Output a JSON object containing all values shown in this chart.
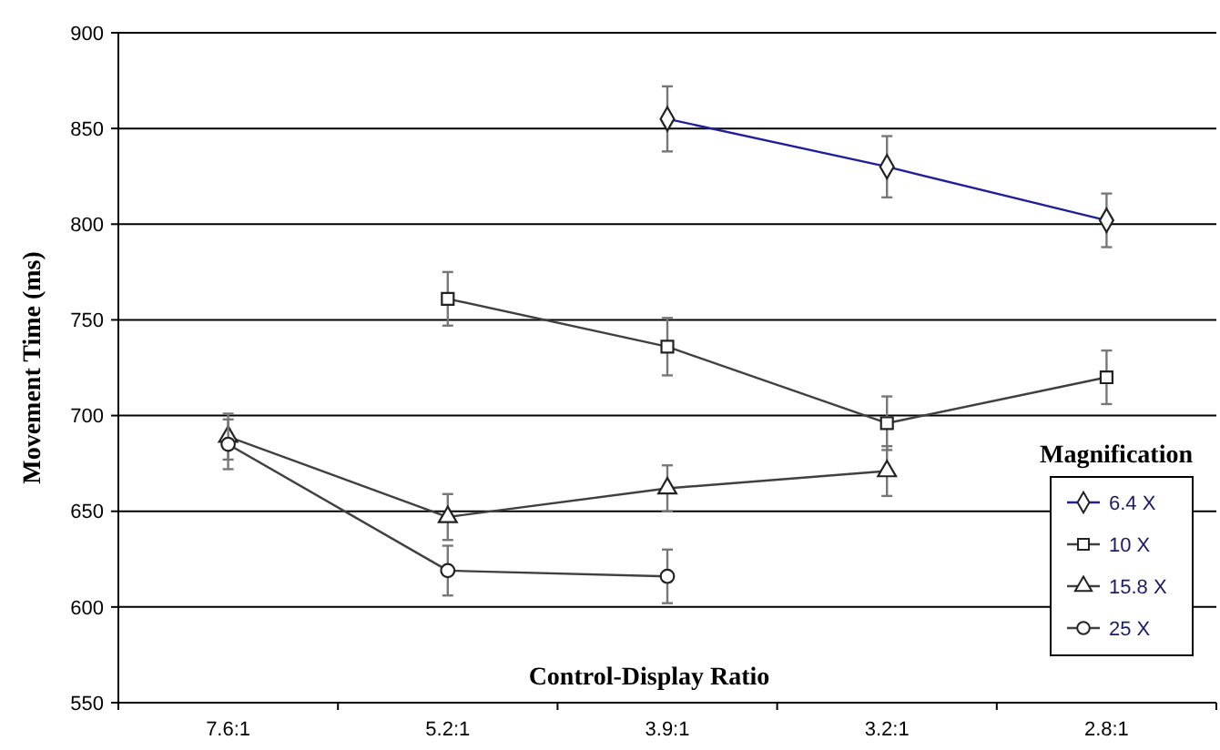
{
  "chart_data": {
    "type": "line",
    "xlabel": "Control-Display Ratio",
    "ylabel": "Movement Time (ms)",
    "legend_title": "Magnification",
    "categories": [
      "7.6:1",
      "5.2:1",
      "3.9:1",
      "3.2:1",
      "2.8:1"
    ],
    "ylim": [
      550,
      900
    ],
    "yticks": [
      550,
      600,
      650,
      700,
      750,
      800,
      850,
      900
    ],
    "grid": "y",
    "legend": "right",
    "series": [
      {
        "name": "6.4 X",
        "color": "#1f1f9a",
        "marker": "diamond",
        "values": [
          null,
          null,
          855,
          830,
          802
        ],
        "errors": [
          null,
          null,
          17,
          16,
          14
        ]
      },
      {
        "name": "10 X",
        "color": "#404040",
        "marker": "square",
        "values": [
          null,
          761,
          736,
          696,
          720
        ],
        "errors": [
          null,
          14,
          15,
          14,
          14
        ]
      },
      {
        "name": "15.8 X",
        "color": "#404040",
        "marker": "triangle",
        "values": [
          689,
          647,
          662,
          671,
          null
        ],
        "errors": [
          12,
          12,
          12,
          13,
          null
        ]
      },
      {
        "name": "25 X",
        "color": "#404040",
        "marker": "circle",
        "values": [
          685,
          619,
          616,
          null,
          null
        ],
        "errors": [
          13,
          13,
          14,
          null,
          null
        ]
      }
    ]
  }
}
